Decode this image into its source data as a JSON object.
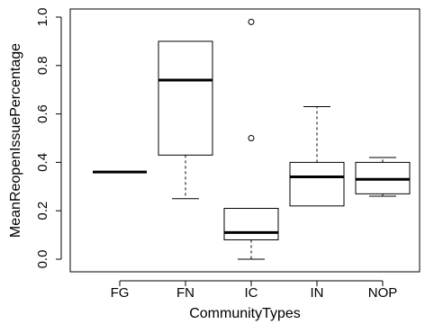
{
  "chart_data": {
    "type": "box",
    "title": "",
    "xlabel": "CommunityTypes",
    "ylabel": "MeanReopenIssuePercentage",
    "ylim": [
      0.0,
      1.0
    ],
    "yticks": [
      "0.0",
      "0.2",
      "0.4",
      "0.6",
      "0.8",
      "1.0"
    ],
    "grid": false,
    "categories": [
      "FG",
      "FN",
      "IC",
      "IN",
      "NOP"
    ],
    "boxes": [
      {
        "category": "FG",
        "min": 0.36,
        "q1": 0.36,
        "median": 0.36,
        "q3": 0.36,
        "max": 0.36,
        "outliers": []
      },
      {
        "category": "FN",
        "min": 0.25,
        "q1": 0.43,
        "median": 0.74,
        "q3": 0.9,
        "max": 0.9,
        "outliers": []
      },
      {
        "category": "IC",
        "min": 0.0,
        "q1": 0.08,
        "median": 0.11,
        "q3": 0.21,
        "max": 0.21,
        "outliers": [
          0.5,
          0.98
        ]
      },
      {
        "category": "IN",
        "min": 0.22,
        "q1": 0.22,
        "median": 0.34,
        "q3": 0.4,
        "max": 0.63,
        "outliers": []
      },
      {
        "category": "NOP",
        "min": 0.26,
        "q1": 0.27,
        "median": 0.33,
        "q3": 0.4,
        "max": 0.42,
        "outliers": []
      }
    ]
  }
}
